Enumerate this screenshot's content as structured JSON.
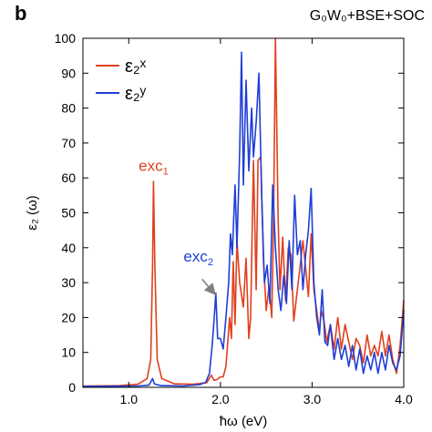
{
  "panel_label": "b",
  "method_label": "G₀W₀+BSE+SOC",
  "colors": {
    "series_x": "#e0401f",
    "series_y": "#1f3fd6",
    "axis": "#000000",
    "arrow": "#808080"
  },
  "chart_data": {
    "type": "line",
    "title": "",
    "xlabel": "ħω (eV)",
    "ylabel": "ε₂ (ω)",
    "xlim": [
      0.5,
      4.0
    ],
    "ylim": [
      0,
      100
    ],
    "x_ticks": [
      1.0,
      2.0,
      3.0,
      4.0
    ],
    "x_tick_labels": [
      "1.0",
      "2.0",
      "3.0",
      "4.0"
    ],
    "y_ticks": [
      0,
      10,
      20,
      30,
      40,
      50,
      60,
      70,
      80,
      90,
      100
    ],
    "y_tick_labels": [
      "0",
      "10",
      "20",
      "30",
      "40",
      "50",
      "60",
      "70",
      "80",
      "90",
      "100"
    ],
    "grid": false,
    "legend_position": "top-left",
    "series": [
      {
        "name": "ε₂ˣ",
        "color": "#e0401f",
        "points": [
          [
            0.5,
            0.4
          ],
          [
            0.9,
            0.5
          ],
          [
            1.1,
            0.9
          ],
          [
            1.2,
            2.5
          ],
          [
            1.24,
            8
          ],
          [
            1.26,
            35
          ],
          [
            1.27,
            59
          ],
          [
            1.285,
            35
          ],
          [
            1.31,
            8
          ],
          [
            1.36,
            2.5
          ],
          [
            1.5,
            1.0
          ],
          [
            1.7,
            0.9
          ],
          [
            1.85,
            1.3
          ],
          [
            1.9,
            3.5
          ],
          [
            1.93,
            2.0
          ],
          [
            1.96,
            2.2
          ],
          [
            2.0,
            3.0
          ],
          [
            2.03,
            3.0
          ],
          [
            2.06,
            6
          ],
          [
            2.1,
            20
          ],
          [
            2.12,
            14
          ],
          [
            2.14,
            36
          ],
          [
            2.16,
            18
          ],
          [
            2.18,
            42
          ],
          [
            2.21,
            30
          ],
          [
            2.25,
            23
          ],
          [
            2.28,
            37
          ],
          [
            2.31,
            14
          ],
          [
            2.33,
            20
          ],
          [
            2.36,
            65
          ],
          [
            2.39,
            28
          ],
          [
            2.41,
            65
          ],
          [
            2.44,
            66
          ],
          [
            2.47,
            36
          ],
          [
            2.5,
            22
          ],
          [
            2.53,
            29
          ],
          [
            2.56,
            20
          ],
          [
            2.58,
            48
          ],
          [
            2.6,
            100
          ],
          [
            2.63,
            48
          ],
          [
            2.65,
            28
          ],
          [
            2.68,
            43
          ],
          [
            2.71,
            25
          ],
          [
            2.74,
            40
          ],
          [
            2.77,
            38
          ],
          [
            2.8,
            19
          ],
          [
            2.84,
            28
          ],
          [
            2.87,
            35
          ],
          [
            2.9,
            42
          ],
          [
            2.93,
            34
          ],
          [
            2.96,
            26
          ],
          [
            2.99,
            44
          ],
          [
            3.02,
            28
          ],
          [
            3.05,
            22
          ],
          [
            3.08,
            16
          ],
          [
            3.1,
            22
          ],
          [
            3.13,
            19
          ],
          [
            3.16,
            13
          ],
          [
            3.2,
            18
          ],
          [
            3.24,
            11
          ],
          [
            3.28,
            20
          ],
          [
            3.32,
            11
          ],
          [
            3.36,
            18
          ],
          [
            3.4,
            13
          ],
          [
            3.44,
            8
          ],
          [
            3.48,
            14
          ],
          [
            3.52,
            12
          ],
          [
            3.56,
            7
          ],
          [
            3.6,
            15
          ],
          [
            3.64,
            9
          ],
          [
            3.68,
            12
          ],
          [
            3.72,
            9
          ],
          [
            3.76,
            16
          ],
          [
            3.8,
            9
          ],
          [
            3.84,
            15
          ],
          [
            3.88,
            8
          ],
          [
            3.92,
            4
          ],
          [
            3.96,
            12
          ],
          [
            4.0,
            25
          ]
        ]
      },
      {
        "name": "ε₂ʸ",
        "color": "#1f3fd6",
        "points": [
          [
            0.5,
            0.3
          ],
          [
            1.1,
            0.4
          ],
          [
            1.22,
            0.6
          ],
          [
            1.26,
            2.5
          ],
          [
            1.28,
            1.0
          ],
          [
            1.35,
            0.5
          ],
          [
            1.6,
            0.4
          ],
          [
            1.78,
            0.8
          ],
          [
            1.84,
            1.5
          ],
          [
            1.88,
            4
          ],
          [
            1.91,
            12
          ],
          [
            1.93,
            19
          ],
          [
            1.95,
            27
          ],
          [
            1.97,
            14
          ],
          [
            2.0,
            14
          ],
          [
            2.03,
            11
          ],
          [
            2.06,
            20
          ],
          [
            2.09,
            30
          ],
          [
            2.11,
            44
          ],
          [
            2.13,
            38
          ],
          [
            2.16,
            58
          ],
          [
            2.18,
            40
          ],
          [
            2.21,
            68
          ],
          [
            2.23,
            96
          ],
          [
            2.25,
            58
          ],
          [
            2.28,
            88
          ],
          [
            2.31,
            62
          ],
          [
            2.34,
            80
          ],
          [
            2.36,
            66
          ],
          [
            2.39,
            76
          ],
          [
            2.42,
            90
          ],
          [
            2.45,
            55
          ],
          [
            2.48,
            30
          ],
          [
            2.51,
            35
          ],
          [
            2.54,
            24
          ],
          [
            2.57,
            58
          ],
          [
            2.6,
            40
          ],
          [
            2.63,
            28
          ],
          [
            2.66,
            22
          ],
          [
            2.69,
            32
          ],
          [
            2.72,
            24
          ],
          [
            2.75,
            42
          ],
          [
            2.78,
            28
          ],
          [
            2.81,
            55
          ],
          [
            2.84,
            38
          ],
          [
            2.87,
            42
          ],
          [
            2.9,
            28
          ],
          [
            2.93,
            38
          ],
          [
            2.96,
            45
          ],
          [
            2.99,
            57
          ],
          [
            3.02,
            30
          ],
          [
            3.05,
            20
          ],
          [
            3.08,
            15
          ],
          [
            3.11,
            28
          ],
          [
            3.14,
            13
          ],
          [
            3.17,
            12
          ],
          [
            3.2,
            18
          ],
          [
            3.24,
            8
          ],
          [
            3.28,
            14
          ],
          [
            3.32,
            8
          ],
          [
            3.36,
            12
          ],
          [
            3.4,
            6
          ],
          [
            3.44,
            12
          ],
          [
            3.48,
            5
          ],
          [
            3.52,
            11
          ],
          [
            3.56,
            4
          ],
          [
            3.6,
            9
          ],
          [
            3.64,
            5
          ],
          [
            3.68,
            10
          ],
          [
            3.72,
            4
          ],
          [
            3.76,
            10
          ],
          [
            3.8,
            5
          ],
          [
            3.84,
            12
          ],
          [
            3.88,
            7
          ],
          [
            3.92,
            5
          ],
          [
            3.96,
            9
          ],
          [
            4.0,
            22
          ]
        ]
      }
    ],
    "annotations": [
      {
        "text": "exc",
        "sub": "1",
        "x": 1.27,
        "y": 62,
        "color": "#e0401f"
      },
      {
        "text": "exc",
        "sub": "2",
        "x": 1.76,
        "y": 36,
        "color": "#1f3fd6"
      }
    ],
    "arrow": {
      "from": [
        1.8,
        31
      ],
      "to": [
        1.93,
        27
      ]
    }
  }
}
